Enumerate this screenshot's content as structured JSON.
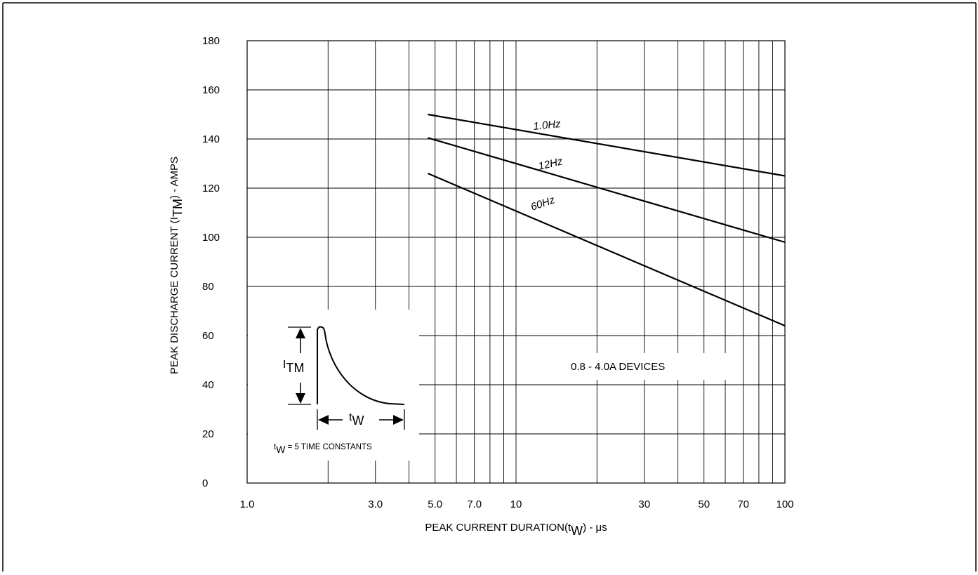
{
  "chart_data": {
    "type": "line",
    "x_scale": "log",
    "xlim": [
      1.0,
      100
    ],
    "ylim": [
      0,
      180
    ],
    "grid": true,
    "x_ticks": [
      {
        "value": 1.0,
        "label": "1.0"
      },
      {
        "value": 3.0,
        "label": "3.0"
      },
      {
        "value": 5.0,
        "label": "5.0"
      },
      {
        "value": 7.0,
        "label": "7.0"
      },
      {
        "value": 10,
        "label": "10"
      },
      {
        "value": 30,
        "label": "30"
      },
      {
        "value": 50,
        "label": "50"
      },
      {
        "value": 70,
        "label": "70"
      },
      {
        "value": 100,
        "label": "100"
      }
    ],
    "x_gridlines": [
      2,
      3,
      4,
      5,
      6,
      7,
      8,
      9,
      10,
      20,
      30,
      40,
      50,
      60,
      70,
      80,
      90
    ],
    "y_ticks": [
      0,
      20,
      40,
      60,
      80,
      100,
      120,
      140,
      160,
      180
    ],
    "xlabel": {
      "main": "PEAK CURRENT DURATION(t",
      "sub": "W",
      "tail": ") - μs"
    },
    "ylabel": {
      "main": "PEAK DISCHARGE CURRENT (I",
      "sub": "TM",
      "tail": ") - AMPS"
    },
    "series": [
      {
        "name": "1.0Hz",
        "x": [
          4.7,
          100
        ],
        "y": [
          150,
          125
        ]
      },
      {
        "name": "12Hz",
        "x": [
          4.7,
          100
        ],
        "y": [
          140.5,
          98
        ]
      },
      {
        "name": "60Hz",
        "x": [
          4.7,
          100
        ],
        "y": [
          126,
          64
        ]
      }
    ],
    "annotations": [
      {
        "text": "0.8 - 4.0A DEVICES"
      }
    ],
    "inset": {
      "i_label_main": "I",
      "i_label_sub": "TM",
      "t_label_main": "t",
      "t_label_sub": "W",
      "caption_main": "t",
      "caption_sub": "W",
      "caption_tail": " = 5 TIME CONSTANTS"
    }
  }
}
